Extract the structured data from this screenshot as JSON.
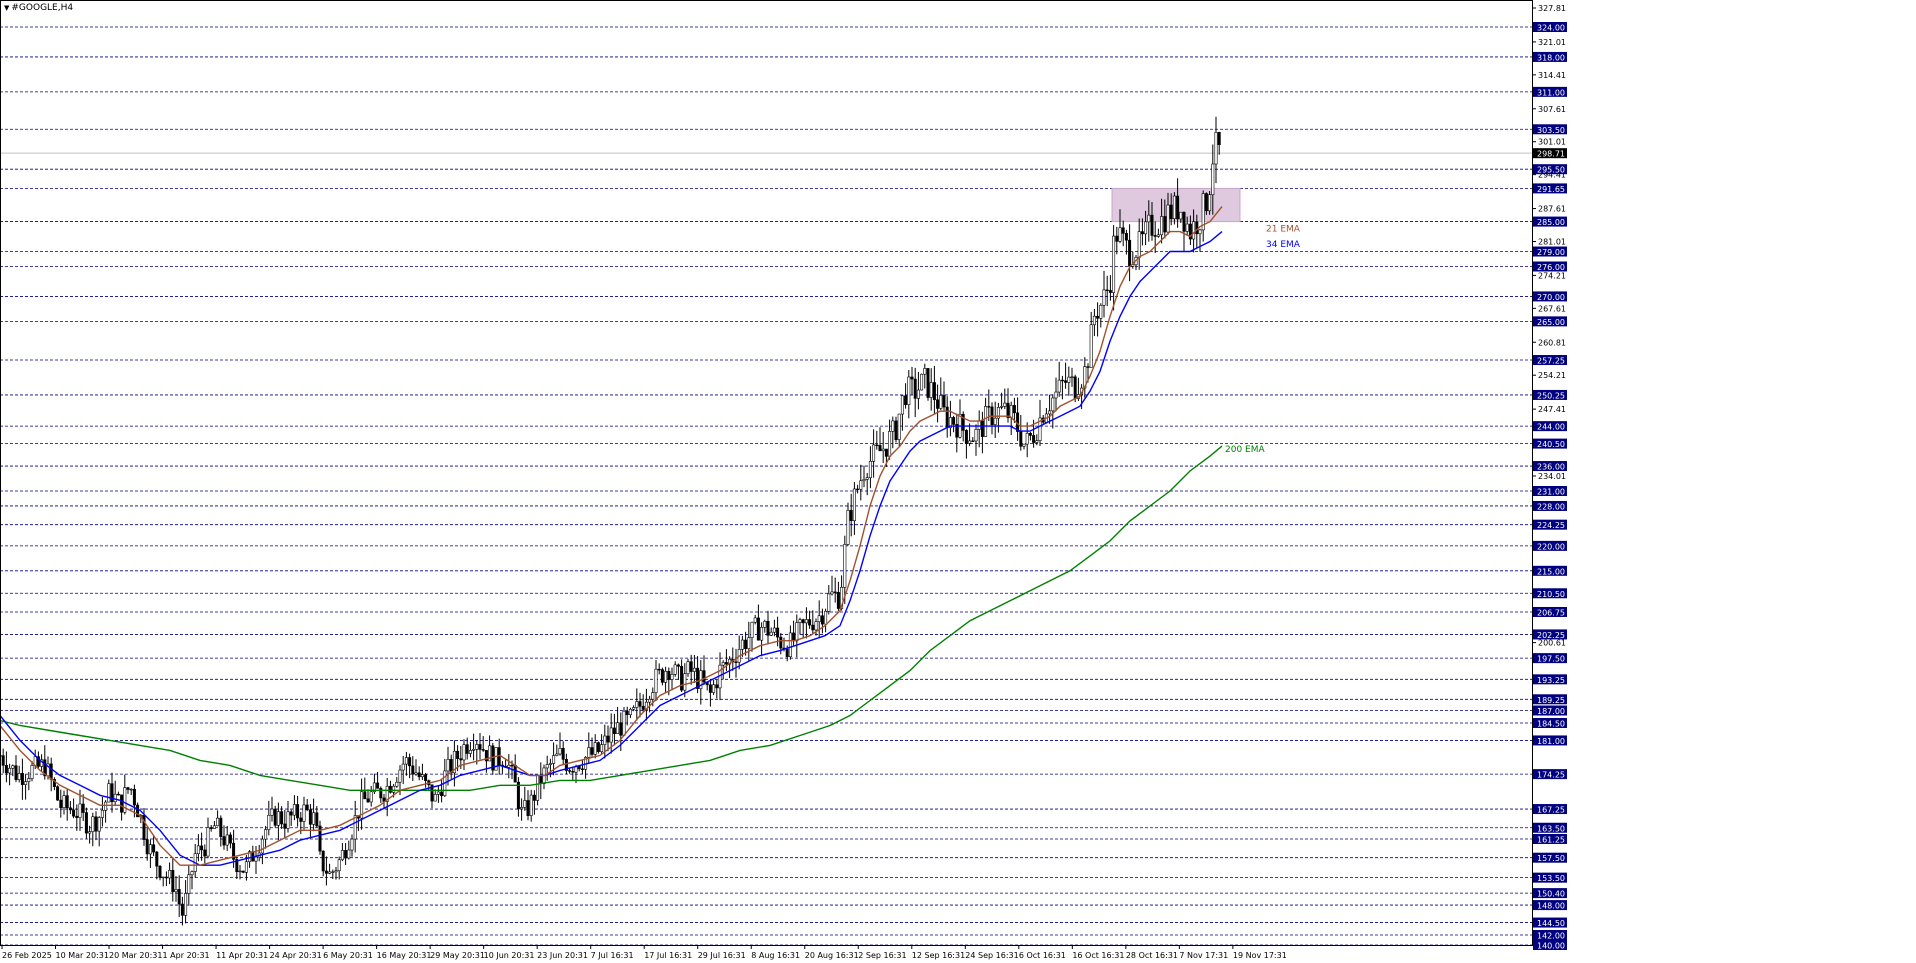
{
  "chart_data": {
    "type": "candlestick",
    "title": "#GOOGLE,H4",
    "colors": {
      "background": "#ffffff",
      "candle": "#000000",
      "level_line": "#000080",
      "level_label_bg": "#000080",
      "level_label_text": "#ffffff",
      "ema21": "#a0522d",
      "ema34": "#0000ff",
      "ema200": "#008000",
      "zone_fill": "#d8bfd8",
      "zone_stroke": "#c8a8c8",
      "current_price_line": "#c0c0c0"
    },
    "y_range": [
      140.0,
      327.81
    ],
    "y_ticks": [
      "327.81",
      "321.01",
      "314.41",
      "307.61",
      "301.01",
      "294.41",
      "287.61",
      "281.01",
      "274.21",
      "267.61",
      "260.81",
      "254.21",
      "247.41",
      "234.01",
      "200.61"
    ],
    "levels": [
      "324.00",
      "318.00",
      "311.00",
      "303.50",
      "295.50",
      "291.65",
      "285.00",
      "279.00",
      "276.00",
      "270.00",
      "265.00",
      "257.25",
      "250.25",
      "244.00",
      "240.50",
      "236.00",
      "231.00",
      "228.00",
      "224.25",
      "220.00",
      "215.00",
      "210.50",
      "206.75",
      "202.25",
      "197.50",
      "193.25",
      "189.25",
      "187.00",
      "184.50",
      "181.00",
      "174.25",
      "167.25",
      "163.50",
      "161.25",
      "157.50",
      "153.50",
      "150.40",
      "148.00",
      "144.50",
      "142.00",
      "140.00"
    ],
    "current_price": "298.71",
    "x_labels": [
      "26 Feb 2025",
      "10 Mar 20:31",
      "20 Mar 20:31",
      "1 Apr 20:31",
      "11 Apr 20:31",
      "24 Apr 20:31",
      "6 May 20:31",
      "16 May 20:31",
      "29 May 20:31",
      "10 Jun 20:31",
      "23 Jun 20:31",
      "7 Jul 16:31",
      "17 Jul 16:31",
      "29 Jul 16:31",
      "8 Aug 16:31",
      "20 Aug 16:31",
      "2 Sep 16:31",
      "12 Sep 16:31",
      "24 Sep 16:31",
      "6 Oct 16:31",
      "16 Oct 16:31",
      "28 Oct 16:31",
      "7 Nov 17:31",
      "19 Nov 17:31"
    ],
    "ema_labels": {
      "ema21": "21 EMA",
      "ema34": "34 EMA",
      "ema200": "200 EMA"
    },
    "zone": {
      "from": 285.0,
      "to": 291.65
    },
    "price_path": [
      [
        0,
        178
      ],
      [
        18,
        174
      ],
      [
        30,
        175
      ],
      [
        45,
        176
      ],
      [
        60,
        168
      ],
      [
        75,
        167
      ],
      [
        90,
        164
      ],
      [
        100,
        166
      ],
      [
        110,
        171
      ],
      [
        120,
        168
      ],
      [
        130,
        172
      ],
      [
        140,
        166
      ],
      [
        148,
        160
      ],
      [
        155,
        157
      ],
      [
        165,
        154
      ],
      [
        175,
        152
      ],
      [
        182,
        146
      ],
      [
        188,
        151
      ],
      [
        195,
        158
      ],
      [
        205,
        160
      ],
      [
        215,
        164
      ],
      [
        225,
        161
      ],
      [
        235,
        157
      ],
      [
        245,
        155
      ],
      [
        255,
        159
      ],
      [
        265,
        163
      ],
      [
        275,
        166
      ],
      [
        285,
        165
      ],
      [
        295,
        166
      ],
      [
        305,
        167
      ],
      [
        315,
        165
      ],
      [
        320,
        157
      ],
      [
        330,
        154
      ],
      [
        340,
        157
      ],
      [
        350,
        162
      ],
      [
        360,
        168
      ],
      [
        370,
        170
      ],
      [
        385,
        171
      ],
      [
        395,
        174
      ],
      [
        405,
        177
      ],
      [
        415,
        175
      ],
      [
        425,
        172
      ],
      [
        435,
        169
      ],
      [
        445,
        174
      ],
      [
        455,
        177
      ],
      [
        465,
        180
      ],
      [
        475,
        182
      ],
      [
        485,
        179
      ],
      [
        495,
        177
      ],
      [
        505,
        178
      ],
      [
        515,
        172
      ],
      [
        522,
        166
      ],
      [
        530,
        168
      ],
      [
        540,
        173
      ],
      [
        550,
        176
      ],
      [
        560,
        178
      ],
      [
        570,
        176
      ],
      [
        580,
        177
      ],
      [
        590,
        178
      ],
      [
        600,
        179
      ],
      [
        610,
        182
      ],
      [
        620,
        184
      ],
      [
        630,
        185
      ],
      [
        640,
        188
      ],
      [
        650,
        192
      ],
      [
        660,
        194
      ],
      [
        668,
        196
      ],
      [
        680,
        193
      ],
      [
        690,
        195
      ],
      [
        700,
        193
      ],
      [
        710,
        190
      ],
      [
        720,
        195
      ],
      [
        730,
        197
      ],
      [
        740,
        200
      ],
      [
        750,
        202
      ],
      [
        760,
        204
      ],
      [
        770,
        203
      ],
      [
        780,
        201
      ],
      [
        790,
        200
      ],
      [
        800,
        203
      ],
      [
        810,
        205
      ],
      [
        820,
        206
      ],
      [
        830,
        210
      ],
      [
        840,
        210
      ],
      [
        848,
        225
      ],
      [
        855,
        230
      ],
      [
        865,
        236
      ],
      [
        875,
        238
      ],
      [
        885,
        240
      ],
      [
        895,
        243
      ],
      [
        905,
        251
      ],
      [
        915,
        251
      ],
      [
        925,
        253
      ],
      [
        935,
        250
      ],
      [
        945,
        246
      ],
      [
        955,
        245
      ],
      [
        965,
        243
      ],
      [
        975,
        242
      ],
      [
        985,
        245
      ],
      [
        995,
        247
      ],
      [
        1005,
        247
      ],
      [
        1015,
        245
      ],
      [
        1025,
        240
      ],
      [
        1035,
        243
      ],
      [
        1045,
        248
      ],
      [
        1055,
        250
      ],
      [
        1065,
        253
      ],
      [
        1075,
        252
      ],
      [
        1085,
        255
      ],
      [
        1090,
        260
      ],
      [
        1095,
        267
      ],
      [
        1100,
        268
      ],
      [
        1105,
        270
      ],
      [
        1110,
        273
      ],
      [
        1115,
        283
      ],
      [
        1120,
        282
      ],
      [
        1125,
        280
      ],
      [
        1130,
        279
      ],
      [
        1140,
        280
      ],
      [
        1150,
        284
      ],
      [
        1160,
        285
      ],
      [
        1170,
        287
      ],
      [
        1180,
        288
      ],
      [
        1190,
        283
      ],
      [
        1200,
        286
      ],
      [
        1208,
        290
      ],
      [
        1214,
        300
      ],
      [
        1220,
        299
      ]
    ],
    "ema21": [
      [
        0,
        184
      ],
      [
        20,
        179
      ],
      [
        40,
        175
      ],
      [
        60,
        172
      ],
      [
        80,
        170
      ],
      [
        100,
        168
      ],
      [
        120,
        168
      ],
      [
        140,
        166
      ],
      [
        160,
        160
      ],
      [
        180,
        156
      ],
      [
        200,
        156
      ],
      [
        220,
        157
      ],
      [
        240,
        158
      ],
      [
        260,
        159
      ],
      [
        280,
        161
      ],
      [
        300,
        163
      ],
      [
        320,
        163
      ],
      [
        340,
        164
      ],
      [
        360,
        166
      ],
      [
        380,
        168
      ],
      [
        400,
        171
      ],
      [
        420,
        172
      ],
      [
        440,
        173
      ],
      [
        460,
        176
      ],
      [
        480,
        177
      ],
      [
        500,
        178
      ],
      [
        515,
        176
      ],
      [
        530,
        174
      ],
      [
        545,
        174
      ],
      [
        560,
        176
      ],
      [
        580,
        177
      ],
      [
        600,
        178
      ],
      [
        620,
        181
      ],
      [
        640,
        186
      ],
      [
        660,
        190
      ],
      [
        680,
        192
      ],
      [
        700,
        193
      ],
      [
        720,
        195
      ],
      [
        740,
        198
      ],
      [
        760,
        200
      ],
      [
        780,
        201
      ],
      [
        795,
        201
      ],
      [
        810,
        202
      ],
      [
        825,
        204
      ],
      [
        840,
        207
      ],
      [
        850,
        213
      ],
      [
        860,
        220
      ],
      [
        870,
        228
      ],
      [
        880,
        234
      ],
      [
        890,
        238
      ],
      [
        900,
        240
      ],
      [
        910,
        243
      ],
      [
        920,
        245
      ],
      [
        930,
        246
      ],
      [
        940,
        247
      ],
      [
        950,
        247
      ],
      [
        960,
        246
      ],
      [
        970,
        245
      ],
      [
        980,
        245
      ],
      [
        990,
        246
      ],
      [
        1000,
        246
      ],
      [
        1010,
        246
      ],
      [
        1020,
        244
      ],
      [
        1030,
        244
      ],
      [
        1040,
        245
      ],
      [
        1050,
        246
      ],
      [
        1060,
        248
      ],
      [
        1070,
        249
      ],
      [
        1080,
        250
      ],
      [
        1090,
        254
      ],
      [
        1100,
        259
      ],
      [
        1110,
        266
      ],
      [
        1120,
        272
      ],
      [
        1130,
        276
      ],
      [
        1140,
        278
      ],
      [
        1150,
        279
      ],
      [
        1160,
        281
      ],
      [
        1170,
        283
      ],
      [
        1180,
        283
      ],
      [
        1190,
        282
      ],
      [
        1200,
        284
      ],
      [
        1210,
        285
      ],
      [
        1222,
        288
      ]
    ],
    "ema34": [
      [
        0,
        186
      ],
      [
        20,
        181
      ],
      [
        40,
        177
      ],
      [
        60,
        174
      ],
      [
        80,
        172
      ],
      [
        100,
        170
      ],
      [
        120,
        169
      ],
      [
        140,
        167
      ],
      [
        160,
        163
      ],
      [
        180,
        158
      ],
      [
        200,
        156
      ],
      [
        220,
        156
      ],
      [
        240,
        157
      ],
      [
        260,
        158
      ],
      [
        280,
        159
      ],
      [
        300,
        161
      ],
      [
        320,
        162
      ],
      [
        340,
        163
      ],
      [
        360,
        165
      ],
      [
        380,
        167
      ],
      [
        400,
        169
      ],
      [
        420,
        171
      ],
      [
        440,
        172
      ],
      [
        460,
        174
      ],
      [
        480,
        175
      ],
      [
        500,
        176
      ],
      [
        515,
        175
      ],
      [
        530,
        174
      ],
      [
        545,
        174
      ],
      [
        560,
        175
      ],
      [
        580,
        176
      ],
      [
        600,
        177
      ],
      [
        620,
        180
      ],
      [
        640,
        184
      ],
      [
        660,
        188
      ],
      [
        680,
        190
      ],
      [
        700,
        192
      ],
      [
        720,
        194
      ],
      [
        740,
        196
      ],
      [
        760,
        198
      ],
      [
        780,
        199
      ],
      [
        795,
        200
      ],
      [
        810,
        201
      ],
      [
        825,
        202
      ],
      [
        840,
        204
      ],
      [
        850,
        209
      ],
      [
        860,
        215
      ],
      [
        870,
        222
      ],
      [
        880,
        228
      ],
      [
        890,
        233
      ],
      [
        900,
        236
      ],
      [
        910,
        239
      ],
      [
        920,
        241
      ],
      [
        930,
        242
      ],
      [
        940,
        243
      ],
      [
        950,
        244
      ],
      [
        960,
        244
      ],
      [
        970,
        244
      ],
      [
        980,
        244
      ],
      [
        990,
        244
      ],
      [
        1000,
        244
      ],
      [
        1010,
        244
      ],
      [
        1020,
        243
      ],
      [
        1030,
        243
      ],
      [
        1040,
        244
      ],
      [
        1050,
        245
      ],
      [
        1060,
        246
      ],
      [
        1070,
        247
      ],
      [
        1080,
        248
      ],
      [
        1090,
        251
      ],
      [
        1100,
        255
      ],
      [
        1110,
        261
      ],
      [
        1120,
        266
      ],
      [
        1130,
        270
      ],
      [
        1140,
        273
      ],
      [
        1150,
        275
      ],
      [
        1160,
        277
      ],
      [
        1170,
        279
      ],
      [
        1180,
        279
      ],
      [
        1190,
        279
      ],
      [
        1200,
        280
      ],
      [
        1210,
        281
      ],
      [
        1222,
        283
      ]
    ],
    "ema200": [
      [
        0,
        185
      ],
      [
        20,
        184
      ],
      [
        50,
        183
      ],
      [
        80,
        182
      ],
      [
        110,
        181
      ],
      [
        140,
        180
      ],
      [
        170,
        179
      ],
      [
        200,
        177
      ],
      [
        230,
        176
      ],
      [
        260,
        174
      ],
      [
        290,
        173
      ],
      [
        320,
        172
      ],
      [
        350,
        171
      ],
      [
        380,
        171
      ],
      [
        410,
        171
      ],
      [
        440,
        171
      ],
      [
        470,
        171
      ],
      [
        500,
        172
      ],
      [
        530,
        172
      ],
      [
        560,
        173
      ],
      [
        590,
        173
      ],
      [
        620,
        174
      ],
      [
        650,
        175
      ],
      [
        680,
        176
      ],
      [
        710,
        177
      ],
      [
        740,
        179
      ],
      [
        770,
        180
      ],
      [
        800,
        182
      ],
      [
        830,
        184
      ],
      [
        850,
        186
      ],
      [
        870,
        189
      ],
      [
        890,
        192
      ],
      [
        910,
        195
      ],
      [
        930,
        199
      ],
      [
        950,
        202
      ],
      [
        970,
        205
      ],
      [
        990,
        207
      ],
      [
        1010,
        209
      ],
      [
        1030,
        211
      ],
      [
        1050,
        213
      ],
      [
        1070,
        215
      ],
      [
        1090,
        218
      ],
      [
        1110,
        221
      ],
      [
        1130,
        225
      ],
      [
        1150,
        228
      ],
      [
        1170,
        231
      ],
      [
        1190,
        235
      ],
      [
        1210,
        238
      ],
      [
        1222,
        240
      ]
    ]
  }
}
